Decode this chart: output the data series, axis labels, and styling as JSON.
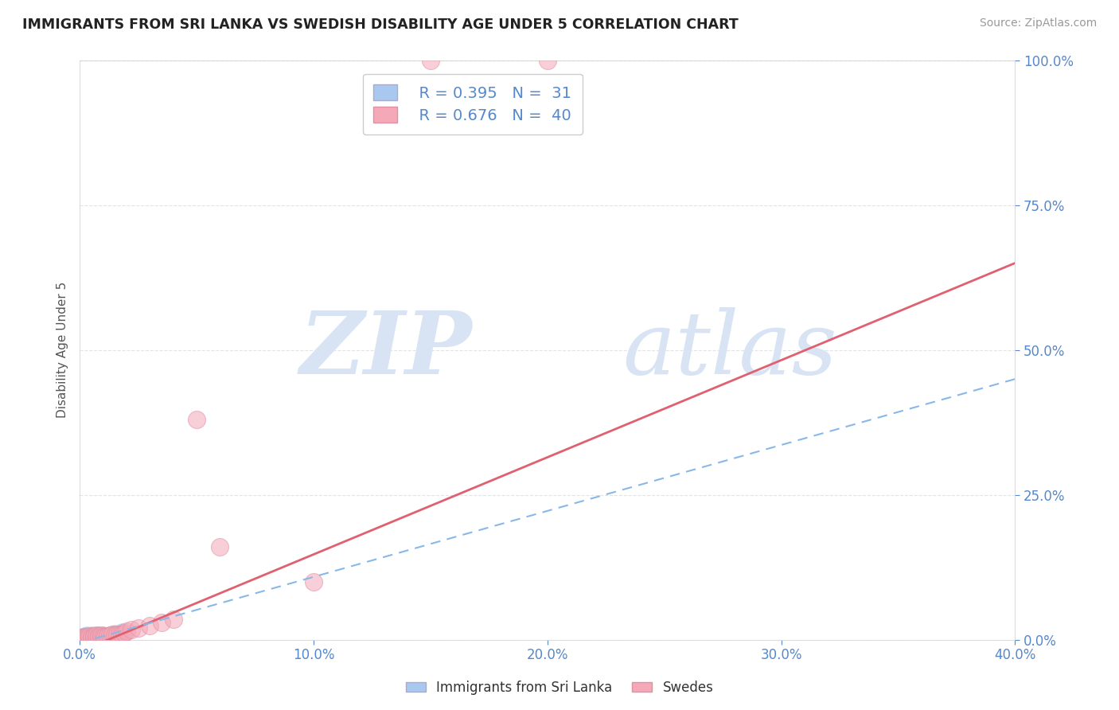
{
  "title": "IMMIGRANTS FROM SRI LANKA VS SWEDISH DISABILITY AGE UNDER 5 CORRELATION CHART",
  "source": "Source: ZipAtlas.com",
  "ylabel": "Disability Age Under 5",
  "xlim": [
    0.0,
    0.4
  ],
  "ylim": [
    0.0,
    1.0
  ],
  "xticks": [
    0.0,
    0.1,
    0.2,
    0.3,
    0.4
  ],
  "xtick_labels": [
    "0.0%",
    "10.0%",
    "20.0%",
    "30.0%",
    "40.0%"
  ],
  "yticks": [
    0.0,
    0.25,
    0.5,
    0.75,
    1.0
  ],
  "ytick_labels": [
    "0.0%",
    "25.0%",
    "50.0%",
    "75.0%",
    "100.0%"
  ],
  "legend_R1": "R = 0.395",
  "legend_N1": "N =  31",
  "legend_R2": "R = 0.676",
  "legend_N2": "N =  40",
  "color_blue": "#A8C8F0",
  "color_pink": "#F4A8B8",
  "color_blue_line": "#88B8E8",
  "color_pink_line": "#E06070",
  "axis_color": "#5588CC",
  "bg_color": "#FFFFFF",
  "grid_color": "#DDDDDD",
  "watermark_color": "#D8E4F4",
  "blue_x": [
    0.0005,
    0.0008,
    0.001,
    0.001,
    0.0012,
    0.0015,
    0.002,
    0.002,
    0.002,
    0.0025,
    0.003,
    0.003,
    0.003,
    0.004,
    0.004,
    0.005,
    0.005,
    0.005,
    0.006,
    0.006,
    0.007,
    0.007,
    0.008,
    0.008,
    0.009,
    0.01,
    0.01,
    0.012,
    0.013,
    0.015,
    0.018
  ],
  "blue_y": [
    0.003,
    0.005,
    0.004,
    0.007,
    0.005,
    0.006,
    0.004,
    0.006,
    0.008,
    0.005,
    0.004,
    0.007,
    0.009,
    0.005,
    0.008,
    0.004,
    0.006,
    0.01,
    0.005,
    0.008,
    0.005,
    0.009,
    0.006,
    0.01,
    0.007,
    0.006,
    0.01,
    0.008,
    0.009,
    0.012,
    0.015
  ],
  "pink_x": [
    0.001,
    0.001,
    0.002,
    0.002,
    0.003,
    0.003,
    0.004,
    0.004,
    0.005,
    0.005,
    0.006,
    0.006,
    0.007,
    0.007,
    0.008,
    0.008,
    0.009,
    0.009,
    0.01,
    0.01,
    0.011,
    0.012,
    0.013,
    0.014,
    0.015,
    0.016,
    0.017,
    0.018,
    0.019,
    0.02,
    0.022,
    0.025,
    0.03,
    0.035,
    0.04,
    0.05,
    0.06,
    0.1,
    0.15,
    0.2
  ],
  "pink_y": [
    0.002,
    0.004,
    0.003,
    0.005,
    0.003,
    0.006,
    0.004,
    0.007,
    0.003,
    0.006,
    0.004,
    0.007,
    0.004,
    0.008,
    0.005,
    0.007,
    0.005,
    0.008,
    0.005,
    0.007,
    0.006,
    0.007,
    0.008,
    0.009,
    0.008,
    0.01,
    0.009,
    0.01,
    0.012,
    0.015,
    0.018,
    0.02,
    0.025,
    0.03,
    0.035,
    0.38,
    0.16,
    0.1,
    1.0,
    1.0
  ],
  "pink_line_x0": 0.0,
  "pink_line_y0": -0.02,
  "pink_line_x1": 0.4,
  "pink_line_y1": 0.65,
  "blue_line_x0": 0.0,
  "blue_line_y0": -0.005,
  "blue_line_x1": 0.4,
  "blue_line_y1": 0.45
}
